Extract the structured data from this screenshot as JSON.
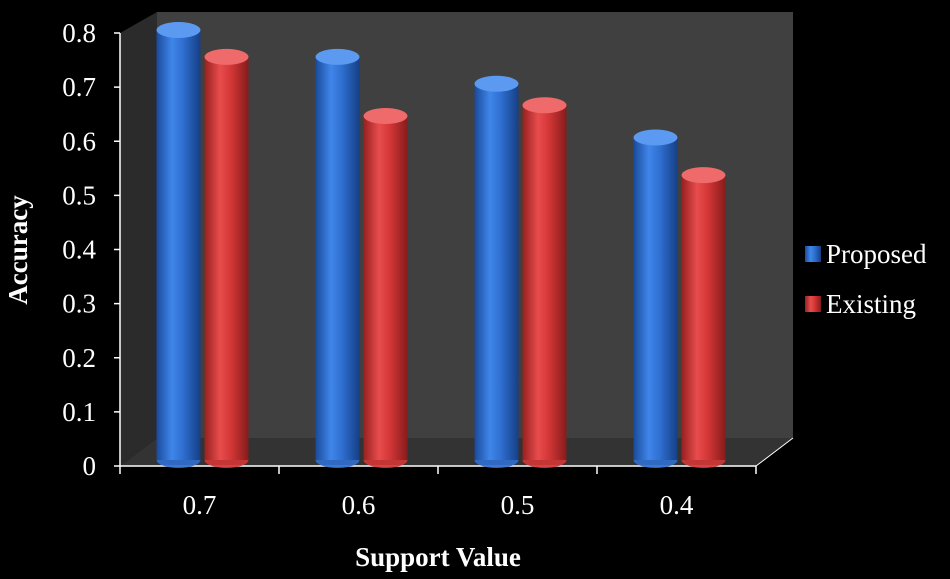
{
  "chart_data": {
    "type": "bar",
    "style": "3d-cylinder",
    "title": "",
    "xlabel": "Support Value",
    "ylabel": "Accuracy",
    "categories": [
      "0.7",
      "0.6",
      "0.5",
      "0.4"
    ],
    "series": [
      {
        "name": "Proposed",
        "color": "#2f6fd0",
        "values": [
          0.8,
          0.75,
          0.7,
          0.6
        ]
      },
      {
        "name": "Existing",
        "color": "#d43636",
        "values": [
          0.75,
          0.64,
          0.66,
          0.53
        ]
      }
    ],
    "ylim": [
      0,
      0.8
    ],
    "yticks": [
      "0",
      "0.1",
      "0.2",
      "0.3",
      "0.4",
      "0.5",
      "0.6",
      "0.7",
      "0.8"
    ],
    "grid": false,
    "legend_position": "right",
    "background": "#000000",
    "wall_color": "#404040",
    "floor_color": "#333333"
  }
}
